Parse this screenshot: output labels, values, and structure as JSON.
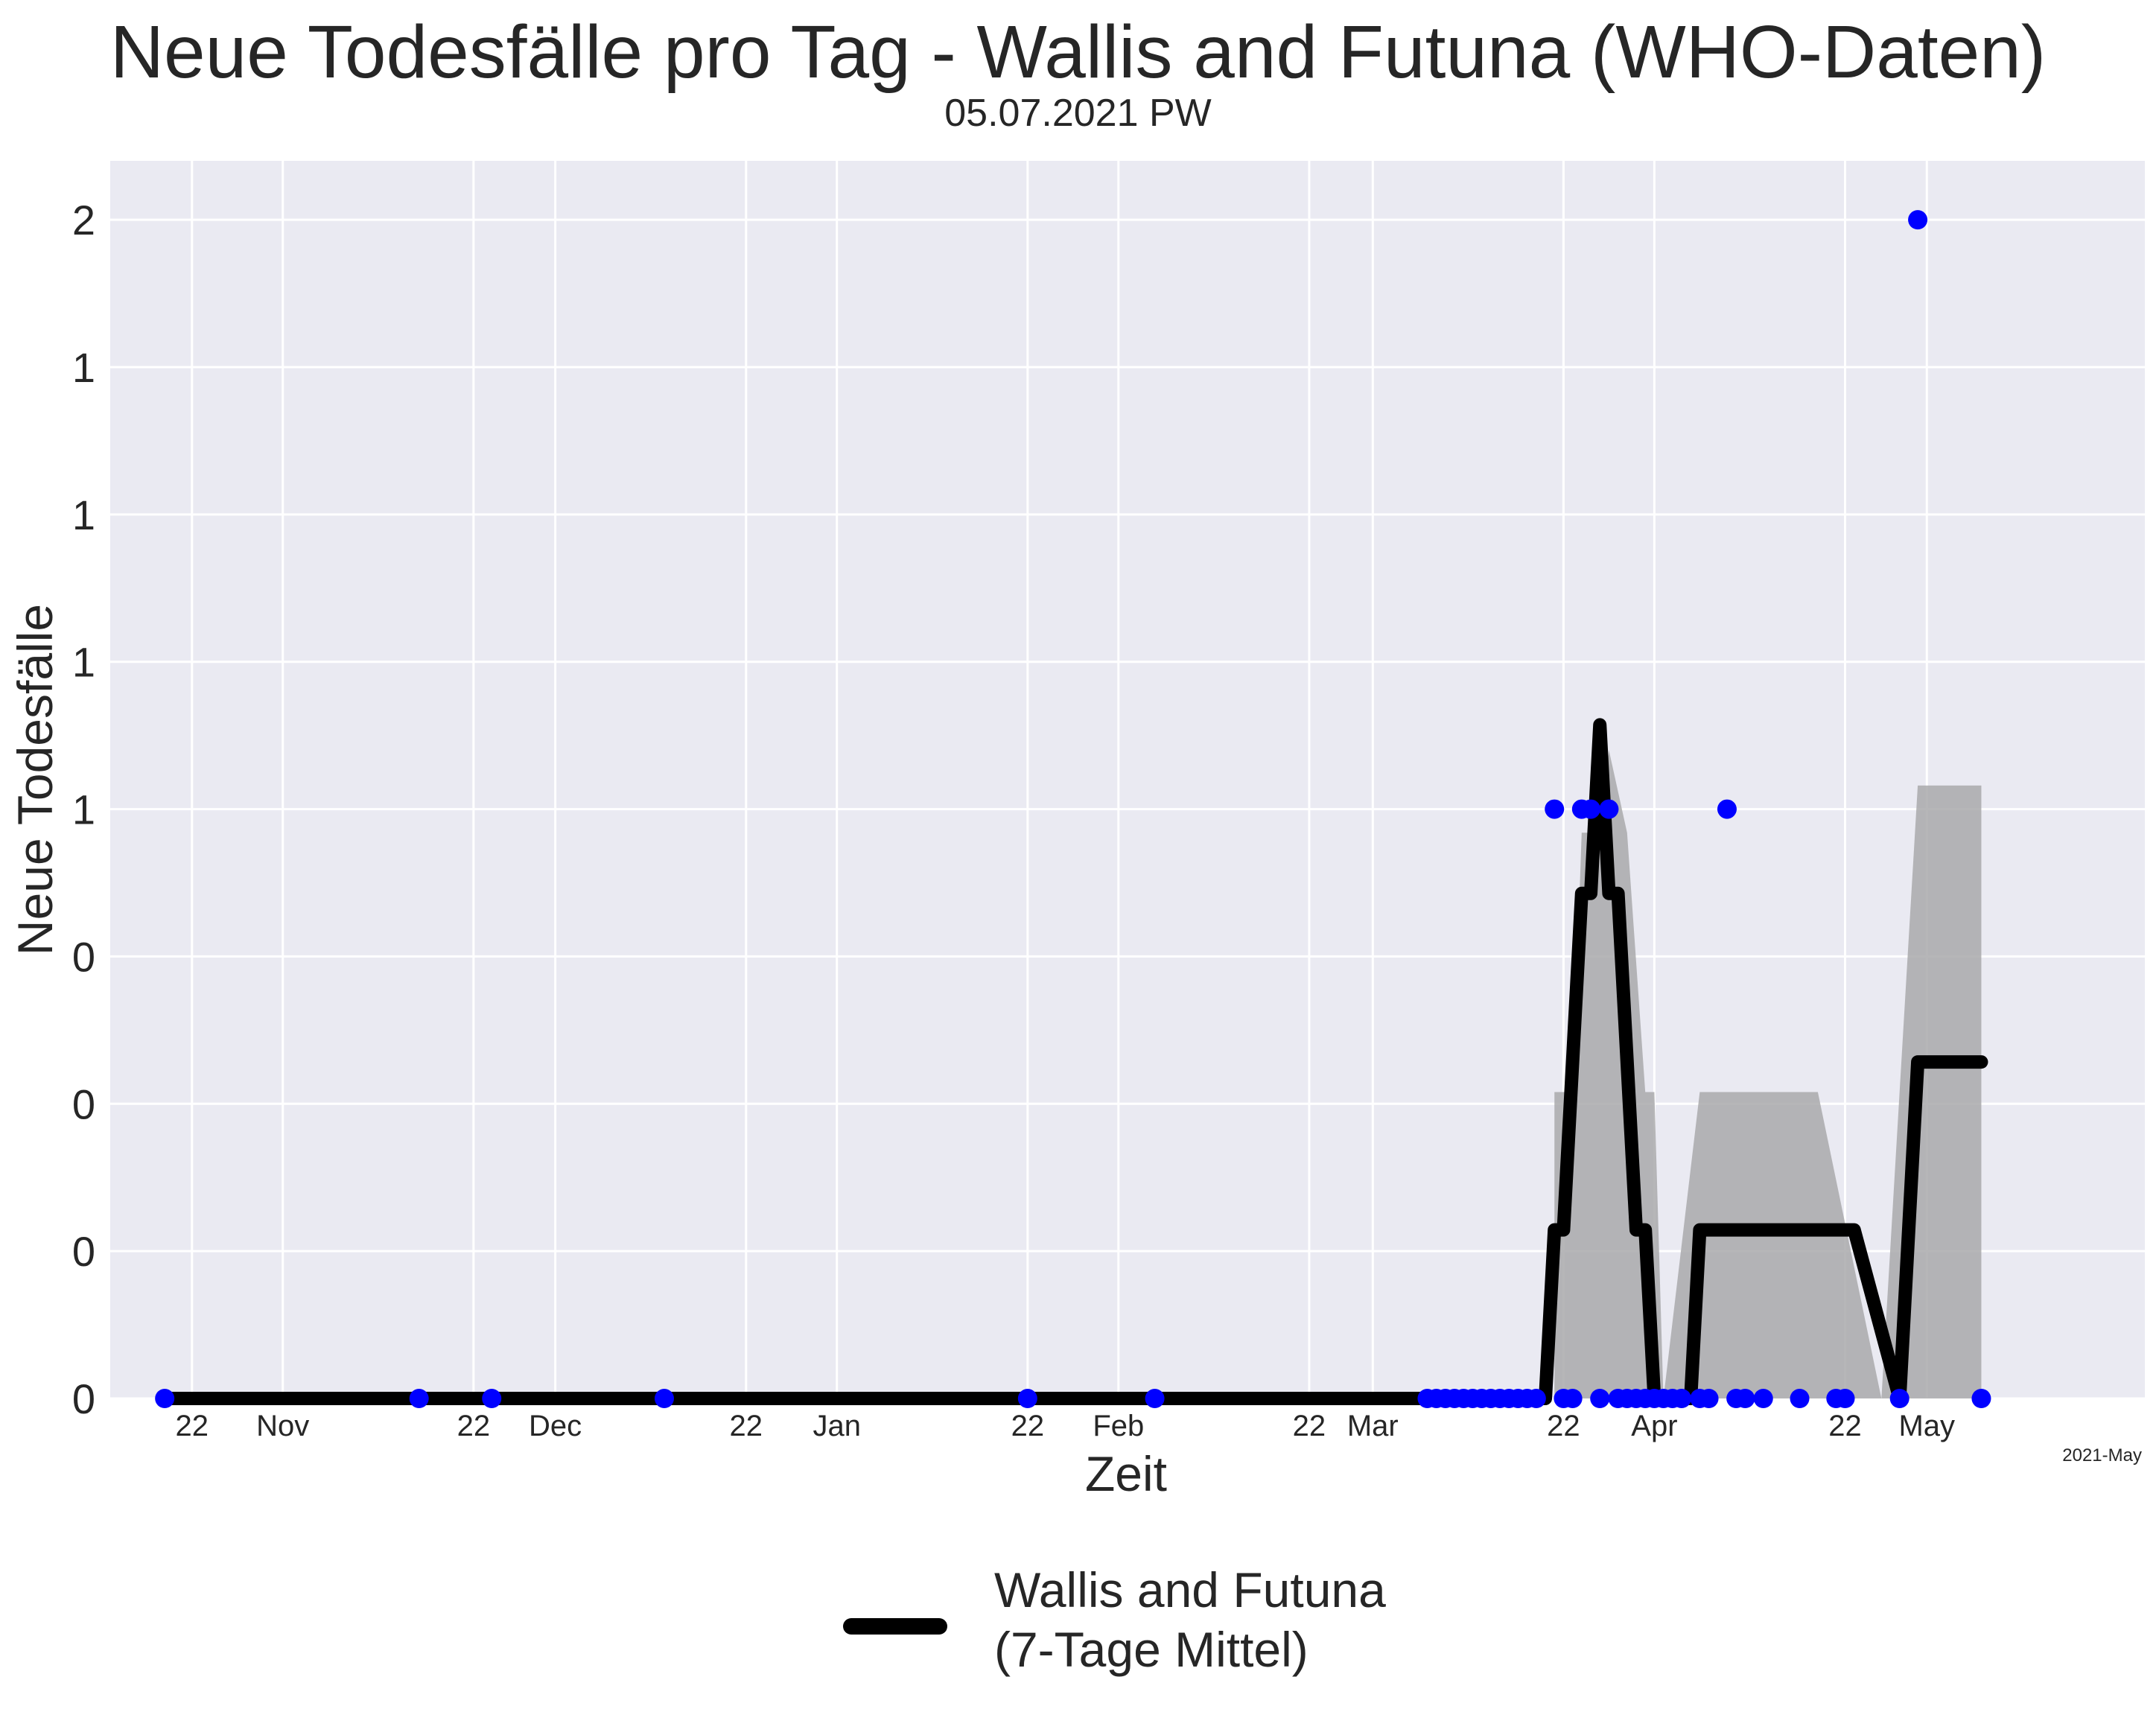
{
  "title": "Neue Todesfälle pro Tag - Wallis and Futuna (WHO-Daten)",
  "subtitle": "05.07.2021 PW",
  "chart_data": {
    "type": "line",
    "xlabel": "Zeit",
    "ylabel": "Neue Todesfälle",
    "xlim": [
      "2020-10-13",
      "2021-05-25"
    ],
    "ylim": [
      0,
      2.1
    ],
    "grid": true,
    "legend_position": "bottom-center",
    "y_ticks": [
      {
        "value": 0.0,
        "label": "0"
      },
      {
        "value": 0.25,
        "label": "0"
      },
      {
        "value": 0.5,
        "label": "0"
      },
      {
        "value": 0.75,
        "label": "0"
      },
      {
        "value": 1.0,
        "label": "1"
      },
      {
        "value": 1.25,
        "label": "1"
      },
      {
        "value": 1.5,
        "label": "1"
      },
      {
        "value": 1.75,
        "label": "1"
      },
      {
        "value": 2.0,
        "label": "2"
      }
    ],
    "x_ticks": [
      {
        "date": "2020-10-22",
        "label": "22"
      },
      {
        "date": "2020-11-01",
        "label": "Nov"
      },
      {
        "date": "2020-11-22",
        "label": "22"
      },
      {
        "date": "2020-12-01",
        "label": "Dec"
      },
      {
        "date": "2020-12-22",
        "label": "22"
      },
      {
        "date": "2021-01-01",
        "label": "Jan"
      },
      {
        "date": "2021-01-22",
        "label": "22"
      },
      {
        "date": "2021-02-01",
        "label": "Feb"
      },
      {
        "date": "2021-02-22",
        "label": "22"
      },
      {
        "date": "2021-03-01",
        "label": "Mar"
      },
      {
        "date": "2021-03-22",
        "label": "22"
      },
      {
        "date": "2021-04-01",
        "label": "Apr"
      },
      {
        "date": "2021-04-22",
        "label": "22"
      },
      {
        "date": "2021-05-01",
        "label": "May"
      }
    ],
    "year_label": "2021-May",
    "colors": {
      "points": "#0000ff",
      "line": "#000000",
      "band": "#a9a9ab",
      "plot_bg": "#eaeaf2",
      "grid": "#ffffff"
    },
    "daily": {
      "x": [
        "2020-10-19",
        "2020-11-16",
        "2020-11-24",
        "2020-12-13",
        "2021-01-22",
        "2021-02-05",
        "2021-03-07",
        "2021-03-08",
        "2021-03-09",
        "2021-03-10",
        "2021-03-11",
        "2021-03-12",
        "2021-03-13",
        "2021-03-14",
        "2021-03-15",
        "2021-03-16",
        "2021-03-17",
        "2021-03-18",
        "2021-03-19",
        "2021-03-21",
        "2021-03-22",
        "2021-03-23",
        "2021-03-24",
        "2021-03-25",
        "2021-03-26",
        "2021-03-27",
        "2021-03-28",
        "2021-03-29",
        "2021-03-30",
        "2021-03-31",
        "2021-04-01",
        "2021-04-02",
        "2021-04-03",
        "2021-04-04",
        "2021-04-06",
        "2021-04-07",
        "2021-04-09",
        "2021-04-10",
        "2021-04-11",
        "2021-04-13",
        "2021-04-17",
        "2021-04-21",
        "2021-04-22",
        "2021-04-28",
        "2021-04-30",
        "2021-05-07"
      ],
      "y": [
        0,
        0,
        0,
        0,
        0,
        0,
        0,
        0,
        0,
        0,
        0,
        0,
        0,
        0,
        0,
        0,
        0,
        0,
        0,
        1,
        0,
        0,
        1,
        1,
        0,
        1,
        0,
        0,
        0,
        0,
        0,
        0,
        0,
        0,
        0,
        0,
        1,
        0,
        0,
        0,
        0,
        0,
        0,
        0,
        2,
        0
      ]
    },
    "series": [
      {
        "name": "Wallis and Futuna\n(7-Tage Mittel)",
        "x": [
          "2020-10-19",
          "2021-03-20",
          "2021-03-21",
          "2021-03-22",
          "2021-03-24",
          "2021-03-25",
          "2021-03-26",
          "2021-03-27",
          "2021-03-28",
          "2021-03-30",
          "2021-03-31",
          "2021-04-01",
          "2021-04-04",
          "2021-04-05",
          "2021-04-06",
          "2021-04-10",
          "2021-04-23",
          "2021-04-28",
          "2021-04-30",
          "2021-05-07"
        ],
        "y": [
          0,
          0,
          0.286,
          0.286,
          0.857,
          0.857,
          1.143,
          0.857,
          0.857,
          0.286,
          0.286,
          0,
          0,
          0,
          0.286,
          0.286,
          0.286,
          0,
          0.571,
          0.571
        ]
      }
    ],
    "band": {
      "x": [
        "2021-03-21",
        "2021-03-23",
        "2021-03-24",
        "2021-03-26",
        "2021-03-27",
        "2021-03-29",
        "2021-03-31",
        "2021-04-01",
        "2021-04-02",
        "2021-04-06",
        "2021-04-19",
        "2021-04-26",
        "2021-04-30",
        "2021-05-07"
      ],
      "upper": [
        0.52,
        0.52,
        0.96,
        0.96,
        1.1,
        0.96,
        0.52,
        0.52,
        0,
        0.52,
        0.52,
        0,
        1.04,
        1.04
      ],
      "lower": [
        0,
        0,
        0,
        0,
        0,
        0,
        0,
        0,
        0,
        0,
        0,
        0,
        0,
        0
      ]
    }
  }
}
